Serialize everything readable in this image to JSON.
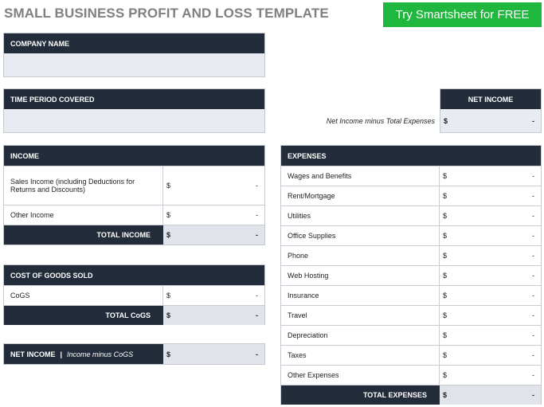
{
  "title": "SMALL BUSINESS PROFIT AND LOSS TEMPLATE",
  "cta_label": "Try Smartsheet for FREE",
  "company": {
    "header": "COMPANY NAME",
    "value": ""
  },
  "period": {
    "header": "TIME PERIOD COVERED",
    "value": ""
  },
  "net_income_box": {
    "header": "NET INCOME",
    "description": "Net Income minus Total Expenses",
    "currency": "$",
    "value": "-"
  },
  "income": {
    "header": "INCOME",
    "rows": [
      {
        "label": "Sales Income (including Deductions for Returns and Discounts)",
        "currency": "$",
        "value": "-"
      },
      {
        "label": "Other Income",
        "currency": "$",
        "value": "-"
      }
    ],
    "total": {
      "label": "TOTAL INCOME",
      "currency": "$",
      "value": "-"
    }
  },
  "cogs": {
    "header": "COST OF GOODS SOLD",
    "rows": [
      {
        "label": "CoGS",
        "currency": "$",
        "value": "-"
      }
    ],
    "total": {
      "label": "TOTAL CoGS",
      "currency": "$",
      "value": "-"
    }
  },
  "net_income_cogs": {
    "label": "NET INCOME",
    "separator": "|",
    "sub": "Income minus CoGS",
    "currency": "$",
    "value": "-"
  },
  "expenses": {
    "header": "EXPENSES",
    "rows": [
      {
        "label": "Wages and Benefits",
        "currency": "$",
        "value": "-"
      },
      {
        "label": "Rent/Mortgage",
        "currency": "$",
        "value": "-"
      },
      {
        "label": "Utilities",
        "currency": "$",
        "value": "-"
      },
      {
        "label": "Office Supplies",
        "currency": "$",
        "value": "-"
      },
      {
        "label": "Phone",
        "currency": "$",
        "value": "-"
      },
      {
        "label": "Web Hosting",
        "currency": "$",
        "value": "-"
      },
      {
        "label": "Insurance",
        "currency": "$",
        "value": "-"
      },
      {
        "label": "Travel",
        "currency": "$",
        "value": "-"
      },
      {
        "label": "Depreciation",
        "currency": "$",
        "value": "-"
      },
      {
        "label": "Taxes",
        "currency": "$",
        "value": "-"
      },
      {
        "label": "Other Expenses",
        "currency": "$",
        "value": "-"
      }
    ],
    "total": {
      "label": "TOTAL EXPENSES",
      "currency": "$",
      "value": "-"
    }
  }
}
